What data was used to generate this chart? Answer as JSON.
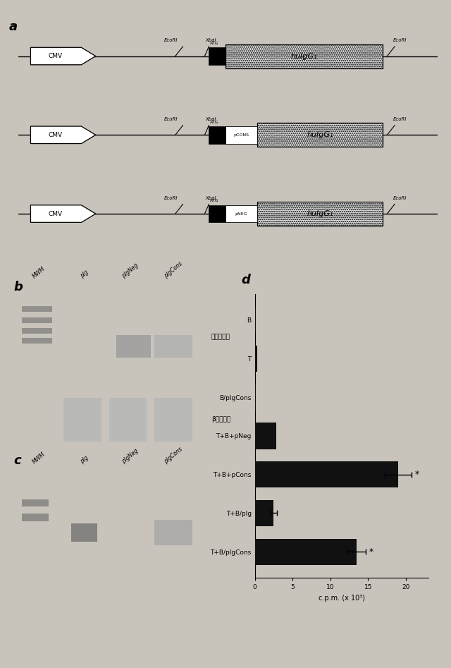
{
  "background_color": "#c8c4bc",
  "panel_d": {
    "labels": [
      "B",
      "T",
      "B/pIgCons",
      "T+B+pNeg",
      "T+B+pCons",
      "T+B/pIg",
      "T+B/pIgCons"
    ],
    "values": [
      0.15,
      0.3,
      0.15,
      2.8,
      19.0,
      2.5,
      13.5
    ],
    "errors": [
      0.0,
      0.0,
      0.0,
      0.0,
      1.8,
      0.4,
      1.2
    ],
    "asterisk": [
      false,
      false,
      false,
      false,
      true,
      false,
      true
    ],
    "xlabel": "c.p.m. (x 10³)",
    "bar_color": "#111111",
    "xlim": [
      0,
      25
    ],
    "xticks": [
      0,
      5,
      10,
      15,
      20,
      25,
      30
    ]
  }
}
